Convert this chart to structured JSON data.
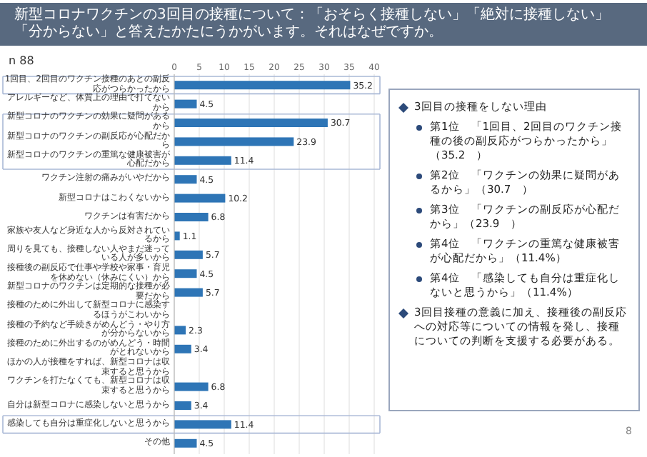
{
  "chart_data": [
    {
      "type": "bar",
      "orientation": "horizontal",
      "title": "新型コロナワクチンの3回目の接種について：「おそらく接種しない」「絶対に接種しない」「分からない」と答えたかたにうかがいます。それはなぜですか。",
      "annotations": [
        "n 88"
      ],
      "categories": [
        "1回目、2回目のワクチン接種のあとの副反応がつらかったから",
        "アレルギーなど、体質上の理由で打てないから",
        "新型コロナのワクチンの効果に疑問があるから",
        "新型コロナのワクチンの副反応が心配だから",
        "新型コロナのワクチンの重篤な健康被害が心配だから",
        "ワクチン注射の痛みがいやだから",
        "新型コロナはこわくないから",
        "ワクチンは有害だから",
        "家族や友人など身近な人から反対されているから",
        "周りを見ても、接種しない人やまだ迷っている人が多いから",
        "接種後の副反応で仕事や学校や家事・育児を休めない（休みにくい）から",
        "新型コロナのワクチンは定期的な接種が必要だから",
        "接種のために外出して新型コロナに感染するほうがこわいから",
        "接種の予約など手続きがめんどう・やり方が分からないから",
        "接種のために外出するのがめんどう・時間がとれないから",
        "ほかの人が接種をすれば、新型コロナは収束すると思うから",
        "ワクチンを打たなくても、新型コロナは収束すると思うから",
        "自分は新型コロナに感染しないと思うから",
        "感染しても自分は重症化しないと思うから",
        "その他"
      ],
      "values": [
        35.2,
        4.5,
        30.7,
        23.9,
        11.4,
        4.5,
        10.2,
        6.8,
        1.1,
        5.7,
        4.5,
        5.7,
        0,
        2.3,
        3.4,
        0,
        6.8,
        3.4,
        11.4,
        4.5
      ],
      "value_labels": [
        "35.2",
        "4.5",
        "30.7",
        "23.9",
        "11.4",
        "4.5",
        "10.2",
        "6.8",
        "1.1",
        "5.7",
        "4.5",
        "5.7",
        null,
        "2.3",
        "3.4",
        null,
        "6.8",
        "3.4",
        "11.4",
        "4.5"
      ],
      "color": "#2e75b6",
      "xlim": [
        0,
        40
      ],
      "xticks": [
        0,
        5,
        10,
        15,
        20,
        25,
        30,
        35,
        40
      ],
      "grid": "x"
    },
    {
      "type": "other",
      "title": "3回目の接種をしない理由",
      "annotations": [
        "第1位　「1回目、2回目のワクチン接種の後の副反応がつらかったから」（35.2　）",
        "第2位　「ワクチンの効果に疑問があるから」（30.7　）",
        "第3位　「ワクチンの副反応が心配だから」（23.9　）",
        "第4位　「ワクチンの重篤な健康被害が心配だから」（11.4%）",
        "第4位　「感染しても自分は重症化しないと思うから」（11.4%）",
        "3回目接種の意義に加え、接種後の副反応への対応等についての情報を発し、接種についての判断を支援する必要がある。",
        "8"
      ]
    }
  ]
}
